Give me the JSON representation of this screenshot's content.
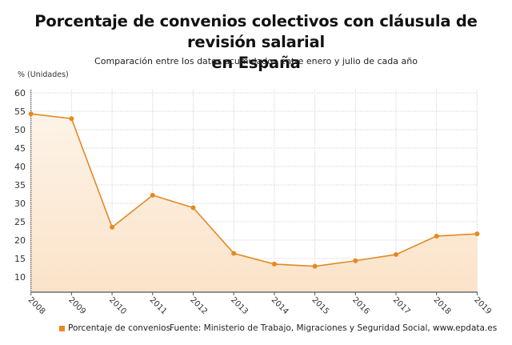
{
  "header": {
    "title_line1": "Porcentaje de convenios colectivos con cláusula de revisión salarial",
    "title_line2": "en España",
    "subtitle": "Comparación entre los datos acumulados entre enero y julio de cada año",
    "unit_label": "% (Unidades)"
  },
  "legend": {
    "label": "Porcentaje de convenios",
    "color": "#e8891d"
  },
  "source": "Fuente: Ministerio de Trabajo, Migraciones y Seguridad Social, www.epdata.es",
  "y_ticks": [
    "60",
    "55",
    "50",
    "45",
    "40",
    "35",
    "30",
    "25",
    "20",
    "15",
    "10"
  ],
  "x_ticks": [
    "2008",
    "2009",
    "2010",
    "2011",
    "2012",
    "2013",
    "2014",
    "2015",
    "2016",
    "2017",
    "2018",
    "2019"
  ],
  "chart_data": {
    "type": "area",
    "title": "Porcentaje de convenios colectivos con cláusula de revisión salarial en España",
    "subtitle": "Comparación entre los datos acumulados entre enero y julio de cada año",
    "xlabel": "",
    "ylabel": "% (Unidades)",
    "categories": [
      "2008",
      "2009",
      "2010",
      "2011",
      "2012",
      "2013",
      "2014",
      "2015",
      "2016",
      "2017",
      "2018",
      "2019"
    ],
    "series": [
      {
        "name": "Porcentaje de convenios",
        "color": "#e8891d",
        "values": [
          54.3,
          53.0,
          23.5,
          32.2,
          28.8,
          16.4,
          13.5,
          12.9,
          14.4,
          16.1,
          21.1,
          21.7
        ]
      }
    ],
    "ylim": [
      6,
      62
    ],
    "yticks": [
      10,
      15,
      20,
      25,
      30,
      35,
      40,
      45,
      50,
      55,
      60
    ],
    "grid": true,
    "legend_position": "bottom",
    "annotations": [
      "Fuente: Ministerio de Trabajo, Migraciones y Seguridad Social, www.epdata.es"
    ]
  }
}
